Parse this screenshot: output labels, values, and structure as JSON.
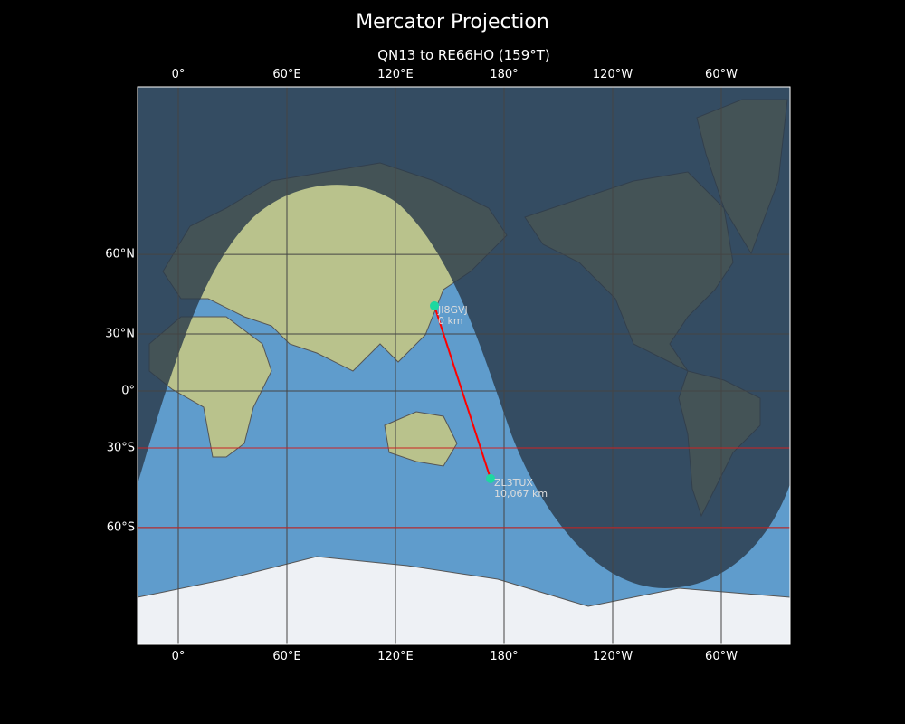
{
  "title": "Mercator Projection",
  "subtitle": "QN13 to RE66HO (159°T)",
  "x_ticks": [
    "0°",
    "60°E",
    "120°E",
    "180°",
    "120°W",
    "60°W"
  ],
  "y_ticks": [
    "60°N",
    "30°N",
    "0°",
    "30°S",
    "60°S"
  ],
  "stations": [
    {
      "call": "JI8GVJ",
      "distance": "0 km",
      "lat": 42.5,
      "lon": 141.5
    },
    {
      "call": "ZL3TUX",
      "distance": "10,067 km",
      "lat": -43.5,
      "lon": 172.5
    }
  ],
  "colors": {
    "path": "#ff0000",
    "marker": "#1ed8a0",
    "ocean": "#5f9ccc",
    "land": "#b8c48e",
    "night": "#2b3a4a",
    "highlight_latitudes": "#cc2222"
  },
  "highlight_latitudes": [
    -30,
    -60
  ]
}
